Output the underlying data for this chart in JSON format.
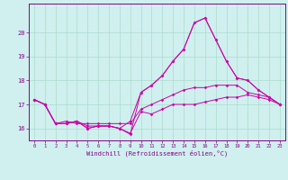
{
  "xlabel": "Windchill (Refroidissement éolien,°C)",
  "bg_color": "#cff0ee",
  "line_color": "#cc00aa",
  "grid_color": "#aaddcc",
  "xlim": [
    -0.5,
    23.5
  ],
  "ylim": [
    15.5,
    21.2
  ],
  "yticks": [
    16,
    17,
    18,
    19,
    20
  ],
  "xticks": [
    0,
    1,
    2,
    3,
    4,
    5,
    6,
    7,
    8,
    9,
    10,
    11,
    12,
    13,
    14,
    15,
    16,
    17,
    18,
    19,
    20,
    21,
    22,
    23
  ],
  "series": [
    [
      17.2,
      17.0,
      16.2,
      16.2,
      16.3,
      16.1,
      16.1,
      16.1,
      16.0,
      15.8,
      16.7,
      16.6,
      16.8,
      17.0,
      17.0,
      17.0,
      17.1,
      17.2,
      17.3,
      17.3,
      17.4,
      17.3,
      17.2,
      17.0
    ],
    [
      17.2,
      17.0,
      16.2,
      16.3,
      16.2,
      16.2,
      16.2,
      16.2,
      16.2,
      16.2,
      16.8,
      17.0,
      17.2,
      17.4,
      17.6,
      17.7,
      17.7,
      17.8,
      17.8,
      17.8,
      17.5,
      17.4,
      17.3,
      17.0
    ],
    [
      17.2,
      17.0,
      16.2,
      16.2,
      16.3,
      16.0,
      16.1,
      16.1,
      16.0,
      16.3,
      17.5,
      17.8,
      18.2,
      18.8,
      19.3,
      20.4,
      20.6,
      19.7,
      18.8,
      18.1,
      18.0,
      17.6,
      17.3,
      17.0
    ],
    [
      17.2,
      17.0,
      16.2,
      16.2,
      16.3,
      16.0,
      16.1,
      16.1,
      16.0,
      15.75,
      17.5,
      17.8,
      18.2,
      18.8,
      19.3,
      20.4,
      20.6,
      19.7,
      18.8,
      18.1,
      18.0,
      17.6,
      17.3,
      17.0
    ]
  ],
  "figsize": [
    3.2,
    2.0
  ],
  "dpi": 100
}
